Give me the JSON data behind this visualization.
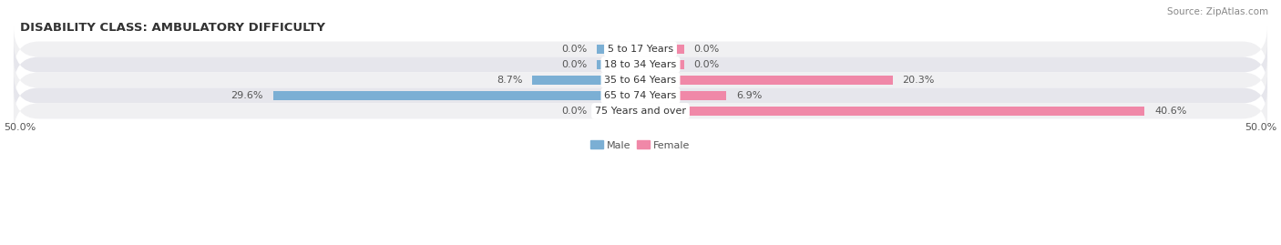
{
  "title": "DISABILITY CLASS: AMBULATORY DIFFICULTY",
  "source": "Source: ZipAtlas.com",
  "categories": [
    "5 to 17 Years",
    "18 to 34 Years",
    "35 to 64 Years",
    "65 to 74 Years",
    "75 Years and over"
  ],
  "male_values": [
    0.0,
    0.0,
    8.7,
    29.6,
    0.0
  ],
  "female_values": [
    0.0,
    0.0,
    20.3,
    6.9,
    40.6
  ],
  "male_color": "#7bafd4",
  "female_color": "#f088a8",
  "row_bg_even": "#f0f0f2",
  "row_bg_odd": "#e6e6ec",
  "axis_limit": 50.0,
  "bar_height": 0.62,
  "min_bar_val": 3.5,
  "title_fontsize": 9.5,
  "label_fontsize": 8,
  "tick_fontsize": 8,
  "source_fontsize": 7.5,
  "category_fontsize": 8
}
